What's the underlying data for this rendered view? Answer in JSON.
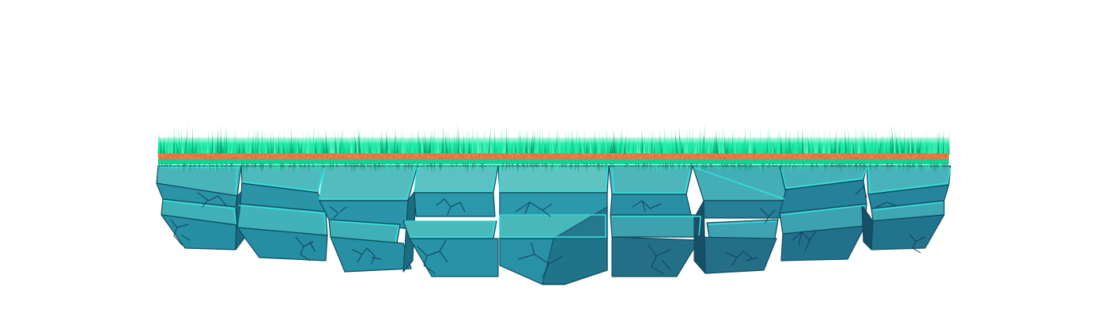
{
  "scene": {
    "asset": "floating-stone-platform",
    "palette": {
      "grass_light": "#22f0a8",
      "grass_mid": "#13d394",
      "grass_dark": "#0a9f72",
      "dirt_stripe": "#f2743c",
      "stone_top": "#57bfc1",
      "stone_face": "#2d9fad",
      "stone_shadow": "#1f6f86",
      "stone_edge": "#34e0df",
      "crack": "#12405a"
    }
  }
}
